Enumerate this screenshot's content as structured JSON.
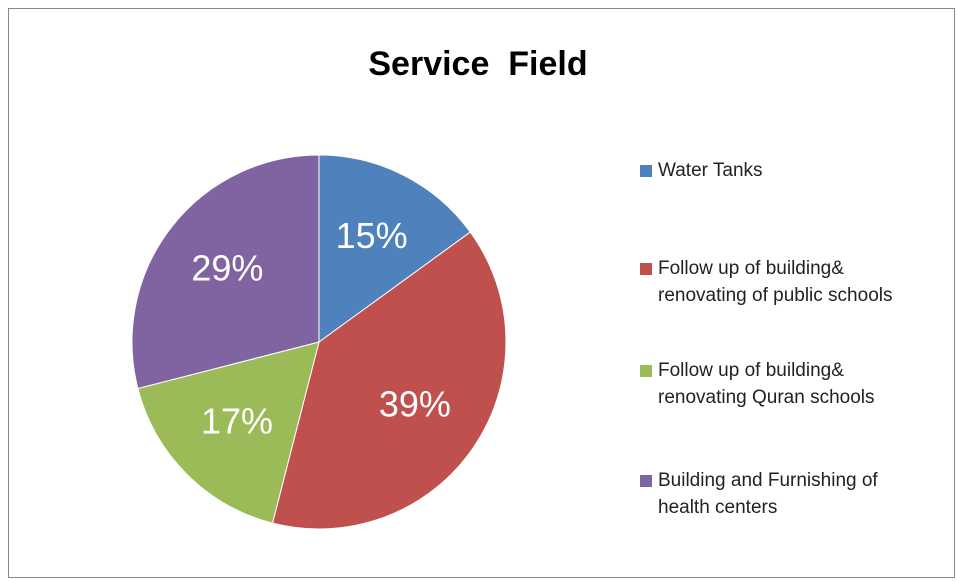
{
  "chart_data": {
    "type": "pie",
    "title": "Service  Field",
    "categories": [
      "Water Tanks",
      "Follow up of building& renovating of public schools",
      "Follow up of building& renovating Quran schools",
      "Building and Furnishing of health centers"
    ],
    "values": [
      15,
      39,
      17,
      29
    ],
    "value_labels": [
      "15%",
      "39%",
      "17%",
      "29%"
    ],
    "colors": [
      "#4f81bd",
      "#c0504d",
      "#9bbb59",
      "#8064a2"
    ],
    "legend": "right"
  }
}
